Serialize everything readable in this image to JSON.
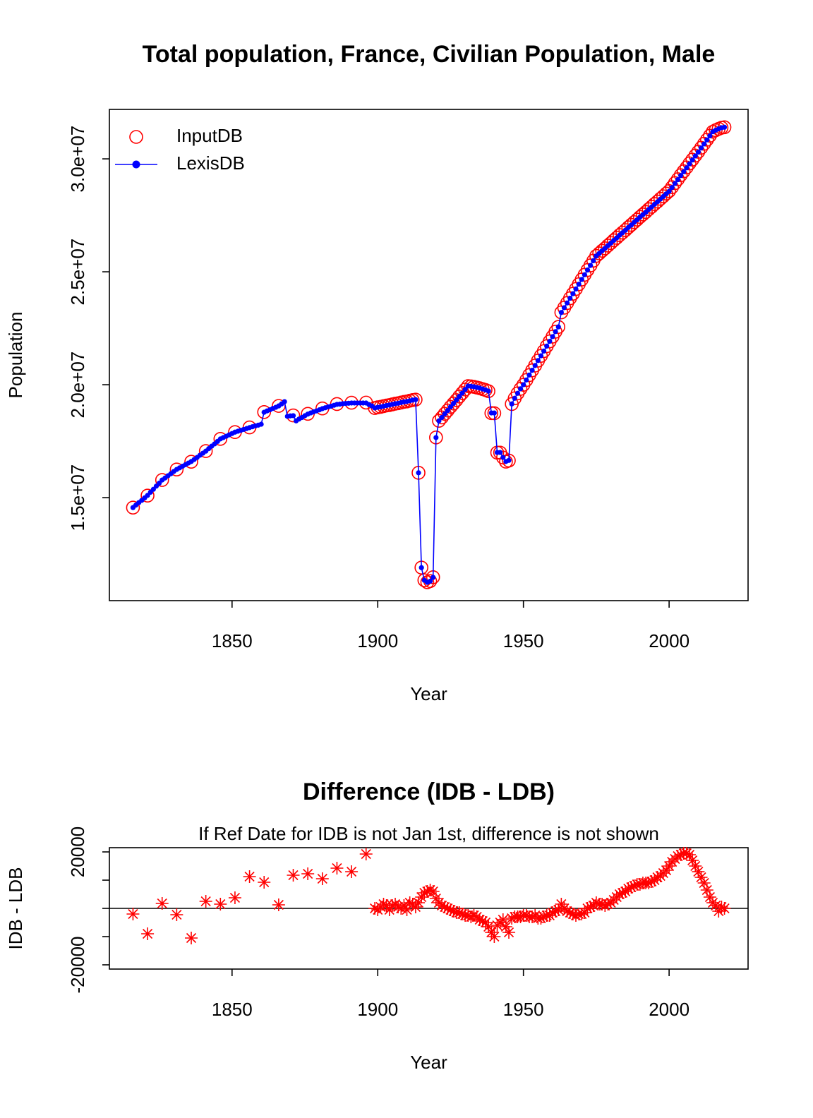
{
  "chart_data": [
    {
      "type": "line",
      "title": "Total population, France, Civilian Population, Male",
      "xlabel": "Year",
      "ylabel": "Population",
      "xlim": [
        1807.9,
        2027.1
      ],
      "ylim": [
        10440000,
        32190000
      ],
      "xticks": [
        1850,
        1900,
        1950,
        2000
      ],
      "yticks": [
        {
          "value": 15000000,
          "label": "1.5e+07"
        },
        {
          "value": 20000000,
          "label": "2.0e+07"
        },
        {
          "value": 25000000,
          "label": "2.5e+07"
        },
        {
          "value": 30000000,
          "label": "3.0e+07"
        }
      ],
      "legend": "topleft",
      "series": [
        {
          "name": "InputDB",
          "color": "#ff0000",
          "marker": "open-circle",
          "line": false,
          "x": [
            1816,
            1821,
            1826,
            1831,
            1836,
            1841,
            1846,
            1851,
            1856,
            1861,
            1866,
            1871,
            1876,
            1881,
            1886,
            1891,
            1896,
            1899,
            1900,
            1901,
            1902,
            1903,
            1904,
            1905,
            1906,
            1907,
            1908,
            1909,
            1910,
            1911,
            1912,
            1913,
            1914,
            1915,
            1916,
            1917,
            1918,
            1919,
            1920,
            1921,
            1922,
            1923,
            1924,
            1925,
            1926,
            1927,
            1928,
            1929,
            1930,
            1931,
            1932,
            1933,
            1934,
            1935,
            1936,
            1937,
            1938,
            1939,
            1940,
            1941,
            1942,
            1943,
            1944,
            1945,
            1946,
            1947,
            1948,
            1949,
            1950,
            1951,
            1952,
            1953,
            1954,
            1955,
            1956,
            1957,
            1958,
            1959,
            1960,
            1961,
            1962,
            1963,
            1964,
            1965,
            1966,
            1967,
            1968,
            1969,
            1970,
            1971,
            1972,
            1973,
            1974,
            1975,
            1976,
            1977,
            1978,
            1979,
            1980,
            1981,
            1982,
            1983,
            1984,
            1985,
            1986,
            1987,
            1988,
            1989,
            1990,
            1991,
            1992,
            1993,
            1994,
            1995,
            1996,
            1997,
            1998,
            1999,
            2000,
            2001,
            2002,
            2003,
            2004,
            2005,
            2006,
            2007,
            2008,
            2009,
            2010,
            2011,
            2012,
            2013,
            2014,
            2015,
            2016,
            2017,
            2018,
            2019
          ],
          "values": [
            14558000,
            15091000,
            15781750,
            16247750,
            16589500,
            17062500,
            17601500,
            17903750,
            18111250,
            18789250,
            19061250,
            18641750,
            18712250,
            18950500,
            19144250,
            19203000,
            19209250,
            18970000,
            18999500,
            19020500,
            19051500,
            19081000,
            19099500,
            19131000,
            19161500,
            19180500,
            19210000,
            19241000,
            19259500,
            19292000,
            19321500,
            19340500,
            16102000,
            11904000,
            11345500,
            11256000,
            11306500,
            11476000,
            17663500,
            18402000,
            18551000,
            18710500,
            18860000,
            19019500,
            19169000,
            19318500,
            19478500,
            19628000,
            19787500,
            19937500,
            19927000,
            19907500,
            19877000,
            19846000,
            19805500,
            19765000,
            19713500,
            18741500,
            18740000,
            16994000,
            16995000,
            16776000,
            16593500,
            16641500,
            19146500,
            19397000,
            19617000,
            19817000,
            19997500,
            20207500,
            20427000,
            20637000,
            20847500,
            21066500,
            21276500,
            21487000,
            21707500,
            21917500,
            22128500,
            22349000,
            22559500,
            23201500,
            23410000,
            23619000,
            23828500,
            24028000,
            24237500,
            24448000,
            24658000,
            24868500,
            25080000,
            25280500,
            25491000,
            25702000,
            25811500,
            25931500,
            26041000,
            26161500,
            26272000,
            26393000,
            26504000,
            26625000,
            26735500,
            26846000,
            26967000,
            27077500,
            27198000,
            27308500,
            27428500,
            27539000,
            27649000,
            27769000,
            27879500,
            28000000,
            28111000,
            28231500,
            28342500,
            28463500,
            28575000,
            28746500,
            28927500,
            29098500,
            29279000,
            29449500,
            29619500,
            29799000,
            29967000,
            30145000,
            30313000,
            30491000,
            30669000,
            30846500,
            31024000,
            31202000,
            31271000,
            31329000,
            31380500,
            31400000
          ]
        },
        {
          "name": "LexisDB",
          "color": "#0000ff",
          "marker": "dot",
          "line": true,
          "x": [
            1816,
            1817,
            1818,
            1819,
            1820,
            1821,
            1822,
            1823,
            1824,
            1825,
            1826,
            1827,
            1828,
            1829,
            1830,
            1831,
            1832,
            1833,
            1834,
            1835,
            1836,
            1837,
            1838,
            1839,
            1840,
            1841,
            1842,
            1843,
            1844,
            1845,
            1846,
            1847,
            1848,
            1849,
            1850,
            1851,
            1852,
            1853,
            1854,
            1855,
            1856,
            1857,
            1858,
            1859,
            1860,
            1861,
            1862,
            1863,
            1864,
            1865,
            1866,
            1867,
            1868,
            1869,
            1870,
            1871,
            1872,
            1873,
            1874,
            1875,
            1876,
            1877,
            1878,
            1879,
            1880,
            1881,
            1882,
            1883,
            1884,
            1885,
            1886,
            1887,
            1888,
            1889,
            1890,
            1891,
            1892,
            1893,
            1894,
            1895,
            1896,
            1897,
            1898,
            1899,
            1900,
            1901,
            1902,
            1903,
            1904,
            1905,
            1906,
            1907,
            1908,
            1909,
            1910,
            1911,
            1912,
            1913,
            1914,
            1915,
            1916,
            1917,
            1918,
            1919,
            1920,
            1921,
            1922,
            1923,
            1924,
            1925,
            1926,
            1927,
            1928,
            1929,
            1930,
            1931,
            1932,
            1933,
            1934,
            1935,
            1936,
            1937,
            1938,
            1939,
            1940,
            1941,
            1942,
            1943,
            1944,
            1945,
            1946,
            1947,
            1948,
            1949,
            1950,
            1951,
            1952,
            1953,
            1954,
            1955,
            1956,
            1957,
            1958,
            1959,
            1960,
            1961,
            1962,
            1963,
            1964,
            1965,
            1966,
            1967,
            1968,
            1969,
            1970,
            1971,
            1972,
            1973,
            1974,
            1975,
            1976,
            1977,
            1978,
            1979,
            1980,
            1981,
            1982,
            1983,
            1984,
            1985,
            1986,
            1987,
            1988,
            1989,
            1990,
            1991,
            1992,
            1993,
            1994,
            1995,
            1996,
            1997,
            1998,
            1999,
            2000,
            2001,
            2002,
            2003,
            2004,
            2005,
            2006,
            2007,
            2008,
            2009,
            2010,
            2011,
            2012,
            2013,
            2014,
            2015,
            2016,
            2017,
            2018,
            2019
          ],
          "values": [
            14560000,
            14670000,
            14780000,
            14880000,
            14990000,
            15100000,
            15240000,
            15370000,
            15510000,
            15640000,
            15780000,
            15870000,
            15970000,
            16060000,
            16160000,
            16250000,
            16320000,
            16390000,
            16460000,
            16530000,
            16600000,
            16690000,
            16780000,
            16880000,
            16970000,
            17060000,
            17170000,
            17280000,
            17380000,
            17490000,
            17600000,
            17660000,
            17720000,
            17780000,
            17840000,
            17900000,
            17940000,
            17980000,
            18020000,
            18060000,
            18100000,
            18140000,
            18180000,
            18210000,
            18250000,
            18780000,
            18840000,
            18890000,
            18950000,
            19000000,
            19060000,
            19150000,
            19250000,
            18600000,
            18620000,
            18630000,
            18400000,
            18480000,
            18550000,
            18630000,
            18700000,
            18750000,
            18800000,
            18840000,
            18890000,
            18940000,
            18980000,
            19020000,
            19050000,
            19090000,
            19130000,
            19140000,
            19160000,
            19170000,
            19180000,
            19190000,
            19190000,
            19190000,
            19190000,
            19190000,
            19190000,
            19120000,
            19060000,
            18970000,
            19000000,
            19020000,
            19050000,
            19080000,
            19100000,
            19130000,
            19160000,
            19180000,
            19210000,
            19240000,
            19260000,
            19290000,
            19320000,
            19340000,
            16100000,
            11900000,
            11340000,
            11250000,
            11300000,
            11470000,
            17660000,
            18400000,
            18550000,
            18710000,
            18860000,
            19020000,
            19170000,
            19320000,
            19480000,
            19630000,
            19790000,
            19940000,
            19930000,
            19910000,
            19880000,
            19850000,
            19810000,
            19770000,
            19720000,
            18750000,
            18750000,
            17000000,
            17000000,
            16780000,
            16600000,
            16650000,
            19150000,
            19400000,
            19620000,
            19820000,
            20000000,
            20210000,
            20430000,
            20640000,
            20850000,
            21070000,
            21280000,
            21490000,
            21710000,
            21920000,
            22130000,
            22350000,
            22560000,
            23200000,
            23410000,
            23620000,
            23830000,
            24030000,
            24240000,
            24450000,
            24660000,
            24870000,
            25080000,
            25280000,
            25490000,
            25700000,
            25810000,
            25930000,
            26040000,
            26160000,
            26270000,
            26390000,
            26500000,
            26620000,
            26730000,
            26840000,
            26960000,
            27070000,
            27190000,
            27300000,
            27420000,
            27530000,
            27640000,
            27760000,
            27870000,
            27990000,
            28100000,
            28220000,
            28330000,
            28450000,
            28560000,
            28730000,
            28910000,
            29080000,
            29260000,
            29430000,
            29600000,
            29780000,
            29950000,
            30130000,
            30300000,
            30480000,
            30660000,
            30840000,
            31020000,
            31200000,
            31270000,
            31330000,
            31380000,
            31400000
          ]
        }
      ]
    },
    {
      "type": "scatter",
      "title": "Difference (IDB - LDB)",
      "subtitle": "If Ref Date for IDB is not Jan 1st, difference is not shown",
      "xlabel": "Year",
      "ylabel": "IDB - LDB",
      "xlim": [
        1807.9,
        2027.1
      ],
      "ylim": [
        -21500,
        21500
      ],
      "xticks": [
        1850,
        1900,
        1950,
        2000
      ],
      "yticks": [
        -20000,
        20000
      ],
      "yminor_ticks": [
        -10000,
        0,
        10000
      ],
      "hline": 0,
      "color": "#ff0000",
      "marker": "asterisk",
      "x": [
        1816,
        1821,
        1826,
        1831,
        1836,
        1841,
        1846,
        1851,
        1856,
        1861,
        1866,
        1871,
        1876,
        1881,
        1886,
        1891,
        1896,
        1899,
        1900,
        1901,
        1902,
        1903,
        1904,
        1905,
        1906,
        1907,
        1908,
        1909,
        1910,
        1911,
        1912,
        1913,
        1914,
        1915,
        1916,
        1917,
        1918,
        1919,
        1920,
        1921,
        1922,
        1923,
        1924,
        1925,
        1926,
        1927,
        1928,
        1929,
        1930,
        1931,
        1932,
        1933,
        1934,
        1935,
        1936,
        1937,
        1938,
        1939,
        1940,
        1941,
        1942,
        1943,
        1944,
        1945,
        1946,
        1947,
        1948,
        1949,
        1950,
        1951,
        1952,
        1953,
        1954,
        1955,
        1956,
        1957,
        1958,
        1959,
        1960,
        1961,
        1962,
        1963,
        1964,
        1965,
        1966,
        1967,
        1968,
        1969,
        1970,
        1971,
        1972,
        1973,
        1974,
        1975,
        1976,
        1977,
        1978,
        1979,
        1980,
        1981,
        1982,
        1983,
        1984,
        1985,
        1986,
        1987,
        1988,
        1989,
        1990,
        1991,
        1992,
        1993,
        1994,
        1995,
        1996,
        1997,
        1998,
        1999,
        2000,
        2001,
        2002,
        2003,
        2004,
        2005,
        2006,
        2007,
        2008,
        2009,
        2010,
        2011,
        2012,
        2013,
        2014,
        2015,
        2016,
        2017,
        2018,
        2019
      ],
      "values": [
        -2000,
        -9000,
        1750,
        -2250,
        -10500,
        2500,
        1500,
        3750,
        11250,
        9250,
        1250,
        11750,
        12250,
        10500,
        14250,
        13000,
        19250,
        0,
        -500,
        500,
        1500,
        1000,
        -500,
        1000,
        1500,
        500,
        0,
        1000,
        -500,
        2000,
        1500,
        500,
        2000,
        4000,
        5500,
        6000,
        6500,
        6000,
        3500,
        2000,
        1000,
        500,
        0,
        -500,
        -1000,
        -1500,
        -1500,
        -2000,
        -2500,
        -2500,
        -3000,
        -2500,
        -3000,
        -4000,
        -4500,
        -5000,
        -6500,
        -8500,
        -10000,
        -6000,
        -5000,
        -4000,
        -6500,
        -8500,
        -3500,
        -3000,
        -3000,
        -3000,
        -2500,
        -2500,
        -3000,
        -3000,
        -2500,
        -3500,
        -3500,
        -3000,
        -2500,
        -2500,
        -1500,
        -1000,
        -500,
        1500,
        0,
        -1000,
        -1500,
        -2000,
        -2500,
        -2000,
        -2000,
        -1500,
        0,
        500,
        1000,
        2000,
        1500,
        1500,
        1000,
        1500,
        2000,
        3000,
        4000,
        5000,
        5500,
        6000,
        7000,
        7500,
        8000,
        8500,
        8500,
        9000,
        9000,
        9000,
        9500,
        10000,
        11000,
        11500,
        12500,
        13500,
        15000,
        16500,
        17500,
        18500,
        19000,
        19500,
        19500,
        19000,
        17000,
        15000,
        13000,
        11000,
        9000,
        6500,
        4000,
        2000,
        1000,
        -1000,
        500,
        0
      ]
    }
  ]
}
